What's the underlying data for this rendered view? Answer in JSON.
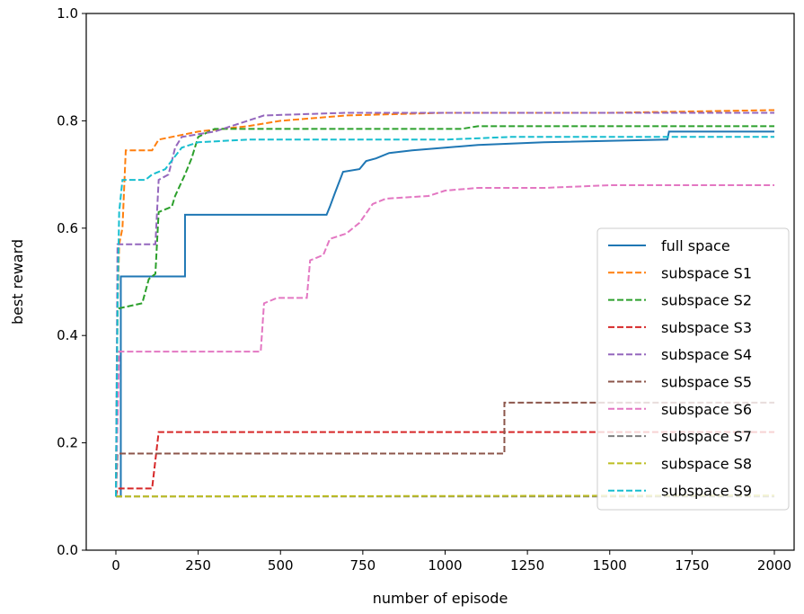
{
  "chart_data": {
    "type": "line",
    "title": "",
    "xlabel": "number of episode",
    "ylabel": "best reward",
    "xlim": [
      -90,
      2060
    ],
    "ylim": [
      0.0,
      1.0
    ],
    "xticks": [
      0,
      250,
      500,
      750,
      1000,
      1250,
      1500,
      1750,
      2000
    ],
    "yticks": [
      0.0,
      0.2,
      0.4,
      0.6,
      0.8,
      1.0
    ],
    "ytick_labels": [
      "0.0",
      "0.2",
      "0.4",
      "0.6",
      "0.8",
      "1.0"
    ],
    "grid": false,
    "legend_position": "lower-right",
    "series": [
      {
        "name": "full space",
        "color": "#1f77b4",
        "dash": "solid",
        "points": [
          [
            0,
            0.1
          ],
          [
            15,
            0.1
          ],
          [
            15,
            0.51
          ],
          [
            210,
            0.51
          ],
          [
            210,
            0.625
          ],
          [
            640,
            0.625
          ],
          [
            650,
            0.64
          ],
          [
            665,
            0.665
          ],
          [
            690,
            0.705
          ],
          [
            740,
            0.71
          ],
          [
            760,
            0.725
          ],
          [
            790,
            0.73
          ],
          [
            830,
            0.74
          ],
          [
            900,
            0.745
          ],
          [
            1000,
            0.75
          ],
          [
            1100,
            0.755
          ],
          [
            1300,
            0.76
          ],
          [
            1675,
            0.765
          ],
          [
            1680,
            0.78
          ],
          [
            2000,
            0.78
          ]
        ]
      },
      {
        "name": "subspace S1",
        "color": "#ff7f0e",
        "dash": "dashed",
        "points": [
          [
            0,
            0.1
          ],
          [
            5,
            0.45
          ],
          [
            10,
            0.57
          ],
          [
            20,
            0.6
          ],
          [
            30,
            0.745
          ],
          [
            110,
            0.745
          ],
          [
            130,
            0.765
          ],
          [
            170,
            0.77
          ],
          [
            250,
            0.78
          ],
          [
            400,
            0.79
          ],
          [
            500,
            0.8
          ],
          [
            700,
            0.81
          ],
          [
            1000,
            0.815
          ],
          [
            1500,
            0.815
          ],
          [
            2000,
            0.82
          ]
        ]
      },
      {
        "name": "subspace S2",
        "color": "#2ca02c",
        "dash": "dashed",
        "points": [
          [
            0,
            0.1
          ],
          [
            5,
            0.45
          ],
          [
            80,
            0.46
          ],
          [
            100,
            0.505
          ],
          [
            120,
            0.515
          ],
          [
            130,
            0.63
          ],
          [
            170,
            0.64
          ],
          [
            180,
            0.66
          ],
          [
            210,
            0.7
          ],
          [
            230,
            0.73
          ],
          [
            250,
            0.77
          ],
          [
            300,
            0.785
          ],
          [
            1050,
            0.785
          ],
          [
            1100,
            0.79
          ],
          [
            2000,
            0.79
          ]
        ]
      },
      {
        "name": "subspace S3",
        "color": "#d62728",
        "dash": "dashed",
        "points": [
          [
            0,
            0.1
          ],
          [
            5,
            0.115
          ],
          [
            110,
            0.115
          ],
          [
            130,
            0.22
          ],
          [
            2000,
            0.22
          ]
        ]
      },
      {
        "name": "subspace S4",
        "color": "#9467bd",
        "dash": "dashed",
        "points": [
          [
            0,
            0.1
          ],
          [
            5,
            0.57
          ],
          [
            120,
            0.57
          ],
          [
            130,
            0.69
          ],
          [
            160,
            0.7
          ],
          [
            180,
            0.75
          ],
          [
            200,
            0.77
          ],
          [
            300,
            0.78
          ],
          [
            350,
            0.79
          ],
          [
            400,
            0.8
          ],
          [
            450,
            0.81
          ],
          [
            700,
            0.815
          ],
          [
            2000,
            0.815
          ]
        ]
      },
      {
        "name": "subspace S5",
        "color": "#8c564b",
        "dash": "dashed",
        "points": [
          [
            0,
            0.1
          ],
          [
            5,
            0.18
          ],
          [
            1180,
            0.18
          ],
          [
            1180,
            0.275
          ],
          [
            2000,
            0.275
          ]
        ]
      },
      {
        "name": "subspace S6",
        "color": "#e377c2",
        "dash": "dashed",
        "points": [
          [
            0,
            0.1
          ],
          [
            10,
            0.37
          ],
          [
            440,
            0.37
          ],
          [
            450,
            0.46
          ],
          [
            490,
            0.47
          ],
          [
            580,
            0.47
          ],
          [
            590,
            0.54
          ],
          [
            630,
            0.55
          ],
          [
            650,
            0.58
          ],
          [
            700,
            0.59
          ],
          [
            740,
            0.61
          ],
          [
            780,
            0.645
          ],
          [
            820,
            0.655
          ],
          [
            950,
            0.66
          ],
          [
            1000,
            0.67
          ],
          [
            1100,
            0.675
          ],
          [
            1300,
            0.675
          ],
          [
            1500,
            0.68
          ],
          [
            2000,
            0.68
          ]
        ]
      },
      {
        "name": "subspace S7",
        "color": "#7f7f7f",
        "dash": "dashed",
        "points": [
          [
            0,
            0.1
          ],
          [
            2000,
            0.1
          ]
        ]
      },
      {
        "name": "subspace S8",
        "color": "#bcbd22",
        "dash": "dashed",
        "points": [
          [
            0,
            0.1
          ],
          [
            2000,
            0.102
          ]
        ]
      },
      {
        "name": "subspace S9",
        "color": "#17becf",
        "dash": "dashed",
        "points": [
          [
            0,
            0.1
          ],
          [
            5,
            0.45
          ],
          [
            10,
            0.63
          ],
          [
            20,
            0.69
          ],
          [
            90,
            0.69
          ],
          [
            110,
            0.7
          ],
          [
            150,
            0.71
          ],
          [
            200,
            0.75
          ],
          [
            250,
            0.76
          ],
          [
            400,
            0.765
          ],
          [
            1000,
            0.765
          ],
          [
            1200,
            0.77
          ],
          [
            2000,
            0.77
          ]
        ]
      }
    ]
  }
}
